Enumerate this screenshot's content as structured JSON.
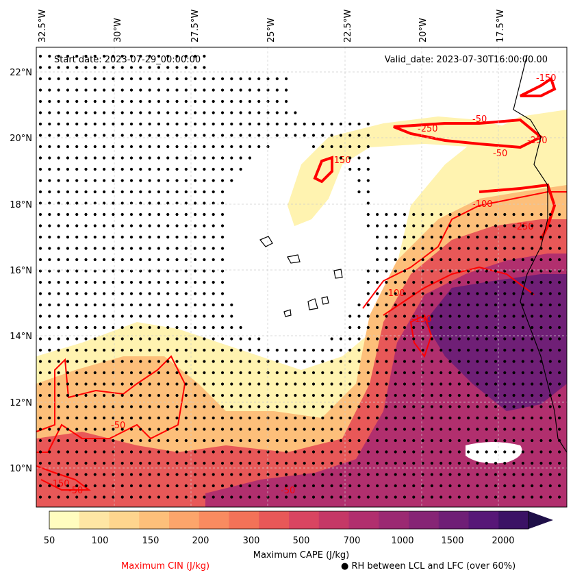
{
  "map": {
    "start_date_label": "Start date: 2023-07-29_00:00:00",
    "valid_date_label": "Valid_date: 2023-07-30T16:00:00.00",
    "lon_ticks": [
      "32.5°W",
      "30°W",
      "27.5°W",
      "25°W",
      "22.5°W",
      "20°W",
      "17.5°W"
    ],
    "lat_ticks": [
      "22°N",
      "20°N",
      "18°N",
      "16°N",
      "14°N",
      "12°N",
      "10°N"
    ],
    "cin_contour_labels": [
      "-50",
      "-50",
      "-250",
      "-50",
      "-150",
      "-100",
      "-150",
      "-250",
      "-100",
      "-150",
      "-250",
      "-150",
      "-50",
      "-50"
    ]
  },
  "colorbar": {
    "label": "Maximum CAPE (J/kg)",
    "ticks": [
      "50",
      "100",
      "150",
      "200",
      "300",
      "500",
      "700",
      "1000",
      "1500",
      "2000"
    ],
    "colors": [
      "#fffdbf",
      "#fee6a4",
      "#fed58e",
      "#fdbf7a",
      "#fca56b",
      "#f98b60",
      "#f37258",
      "#e85858",
      "#d94561",
      "#c53866",
      "#b12f6e",
      "#9b2a72",
      "#862575",
      "#6f1f76",
      "#571777",
      "#3b1265",
      "#1f0f48"
    ]
  },
  "legend": {
    "cin_label": "Maximum CIN (J/kg)",
    "rh_marker": "●",
    "rh_label": "RH between LCL and LFC (over 60%)",
    "cin_color": "#ff0000"
  }
}
